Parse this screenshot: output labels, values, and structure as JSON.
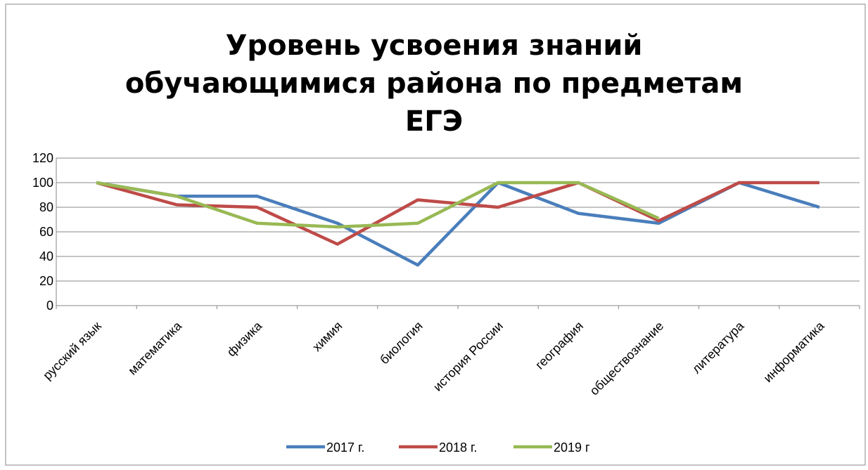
{
  "chart_data": {
    "type": "line",
    "title": "Уровень усвоения знаний обучающимися района по предметам ЕГЭ",
    "categories": [
      "русский язык",
      "математика",
      "физика",
      "химия",
      "биология",
      "история России",
      "география",
      "обществознание",
      "литература",
      "информатика"
    ],
    "series": [
      {
        "name": "2017 г.",
        "color": "#4a7ebb",
        "values": [
          100,
          89,
          89,
          67,
          33,
          100,
          75,
          67,
          100,
          80
        ]
      },
      {
        "name": "2018 г.",
        "color": "#be4b48",
        "values": [
          100,
          82,
          80,
          50,
          86,
          80,
          100,
          69,
          100,
          100
        ]
      },
      {
        "name": "2019 г",
        "color": "#98b954",
        "values": [
          100,
          89,
          67,
          64,
          67,
          100,
          100,
          71,
          null,
          null
        ]
      }
    ],
    "ylim": [
      0,
      120
    ],
    "yticks": [
      0,
      20,
      40,
      60,
      80,
      100,
      120
    ],
    "grid": true,
    "legend": "bottom"
  }
}
